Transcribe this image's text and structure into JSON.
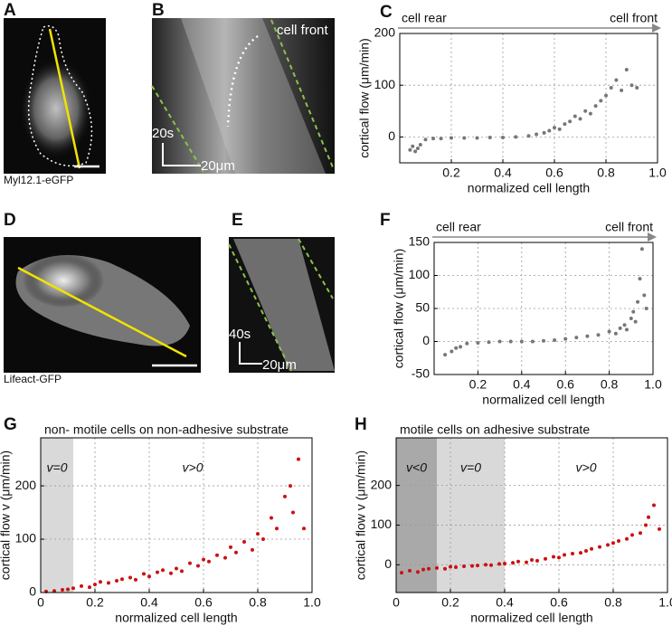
{
  "panel_labels": [
    "A",
    "B",
    "C",
    "D",
    "E",
    "F",
    "G",
    "H"
  ],
  "images": {
    "A": {
      "caption": "Myl12.1-eGFP"
    },
    "B": {
      "time_bar": "20s",
      "scale_bar": "20μm",
      "annotation": "cell front"
    },
    "D": {
      "caption": "Lifeact-GFP"
    },
    "E": {
      "time_bar": "40s",
      "scale_bar": "20μm"
    }
  },
  "chart_data": [
    {
      "type": "scatter",
      "xlabel": "normalized cell length",
      "ylabel": "cortical flow (μm/min)",
      "arrow_labels": [
        "cell rear",
        "cell front"
      ],
      "color": "#777777",
      "grid": true,
      "xlim": [
        0,
        1
      ],
      "ylim": [
        -50,
        200
      ],
      "xticks": [
        0.2,
        0.4,
        0.6,
        0.8,
        {
          "value": 1,
          "label": "1.0"
        }
      ],
      "yticks": [
        0,
        100,
        200
      ],
      "x": [
        0.04,
        0.05,
        0.06,
        0.07,
        0.08,
        0.1,
        0.13,
        0.16,
        0.2,
        0.25,
        0.3,
        0.35,
        0.4,
        0.45,
        0.5,
        0.53,
        0.56,
        0.58,
        0.6,
        0.62,
        0.64,
        0.66,
        0.68,
        0.7,
        0.72,
        0.74,
        0.76,
        0.78,
        0.8,
        0.82,
        0.84,
        0.86,
        0.88,
        0.9,
        0.92
      ],
      "values": [
        -25,
        -18,
        -28,
        -22,
        -15,
        -5,
        -3,
        -3,
        -2,
        -2,
        -2,
        -1,
        -1,
        0,
        2,
        5,
        8,
        12,
        18,
        15,
        25,
        30,
        40,
        35,
        50,
        45,
        60,
        70,
        80,
        95,
        110,
        90,
        130,
        100,
        95
      ]
    },
    {
      "type": "scatter",
      "xlabel": "normalized cell length",
      "ylabel": "cortical flow (μm/min)",
      "arrow_labels": [
        "cell rear",
        "cell front"
      ],
      "color": "#777777",
      "grid": true,
      "xlim": [
        0,
        1
      ],
      "ylim": [
        -50,
        150
      ],
      "xticks": [
        0.2,
        0.4,
        0.6,
        0.8,
        {
          "value": 1,
          "label": "1.0"
        }
      ],
      "yticks": [
        -50,
        0,
        50,
        100,
        150
      ],
      "x": [
        0.05,
        0.08,
        0.1,
        0.12,
        0.15,
        0.2,
        0.25,
        0.3,
        0.35,
        0.4,
        0.45,
        0.5,
        0.55,
        0.6,
        0.65,
        0.7,
        0.75,
        0.8,
        0.83,
        0.85,
        0.87,
        0.88,
        0.9,
        0.91,
        0.92,
        0.93,
        0.94,
        0.95,
        0.96,
        0.97
      ],
      "values": [
        -20,
        -15,
        -10,
        -8,
        -3,
        -2,
        -1,
        0,
        0,
        0,
        0,
        1,
        2,
        4,
        6,
        8,
        10,
        15,
        12,
        20,
        25,
        18,
        35,
        45,
        30,
        60,
        95,
        140,
        70,
        50
      ]
    },
    {
      "type": "scatter",
      "subtitle": "non- motile cells on non-adhesive substrate",
      "xlabel": "normalized cell length",
      "ylabel": "cortical flow v (μm/min)",
      "color": "#cc1111",
      "grid": true,
      "regions": [
        {
          "label": "v=0",
          "range": [
            0,
            0.12
          ],
          "color": "#d9d9d9"
        }
      ],
      "annotations": [
        "v>0"
      ],
      "xlim": [
        0,
        1
      ],
      "ylim": [
        0,
        290
      ],
      "xticks": [
        0,
        0.2,
        0.4,
        0.6,
        0.8,
        {
          "value": 1,
          "label": "1.0"
        }
      ],
      "yticks": [
        0,
        100,
        200
      ],
      "x": [
        0.02,
        0.05,
        0.08,
        0.1,
        0.12,
        0.15,
        0.18,
        0.2,
        0.22,
        0.25,
        0.28,
        0.3,
        0.33,
        0.35,
        0.38,
        0.4,
        0.43,
        0.45,
        0.48,
        0.5,
        0.52,
        0.55,
        0.58,
        0.6,
        0.62,
        0.65,
        0.68,
        0.7,
        0.72,
        0.75,
        0.78,
        0.8,
        0.82,
        0.85,
        0.87,
        0.9,
        0.92,
        0.93,
        0.95,
        0.97
      ],
      "values": [
        2,
        3,
        5,
        6,
        8,
        12,
        10,
        15,
        20,
        18,
        22,
        25,
        28,
        24,
        35,
        30,
        38,
        42,
        36,
        45,
        40,
        55,
        50,
        62,
        58,
        70,
        65,
        85,
        75,
        95,
        80,
        110,
        100,
        140,
        120,
        180,
        200,
        150,
        250,
        120
      ]
    },
    {
      "type": "scatter",
      "subtitle": "motile cells on adhesive substrate",
      "xlabel": "normalized cell length",
      "ylabel": "cortical flow v (μm/min)",
      "color": "#cc1111",
      "grid": true,
      "regions": [
        {
          "label": "v<0",
          "range": [
            0,
            0.15
          ],
          "color": "#a9a9a9"
        },
        {
          "label": "v=0",
          "range": [
            0.15,
            0.4
          ],
          "color": "#d9d9d9"
        }
      ],
      "annotations": [
        "v>0"
      ],
      "xlim": [
        0,
        1
      ],
      "ylim": [
        -70,
        320
      ],
      "xticks": [
        0,
        0.2,
        0.4,
        0.6,
        0.8,
        {
          "value": 1,
          "label": "1.0"
        }
      ],
      "yticks": [
        0,
        100,
        200
      ],
      "x": [
        0.02,
        0.05,
        0.08,
        0.1,
        0.12,
        0.15,
        0.18,
        0.2,
        0.22,
        0.25,
        0.28,
        0.3,
        0.33,
        0.35,
        0.38,
        0.4,
        0.43,
        0.45,
        0.48,
        0.5,
        0.52,
        0.55,
        0.58,
        0.6,
        0.62,
        0.65,
        0.68,
        0.7,
        0.72,
        0.75,
        0.78,
        0.8,
        0.82,
        0.85,
        0.87,
        0.9,
        0.92,
        0.93,
        0.95,
        0.97
      ],
      "values": [
        -20,
        -15,
        -18,
        -12,
        -10,
        -8,
        -10,
        -5,
        -6,
        -4,
        -3,
        -2,
        0,
        -1,
        2,
        3,
        5,
        8,
        6,
        12,
        10,
        15,
        20,
        18,
        25,
        28,
        30,
        35,
        40,
        45,
        50,
        55,
        60,
        65,
        75,
        80,
        100,
        120,
        150,
        90
      ]
    }
  ]
}
